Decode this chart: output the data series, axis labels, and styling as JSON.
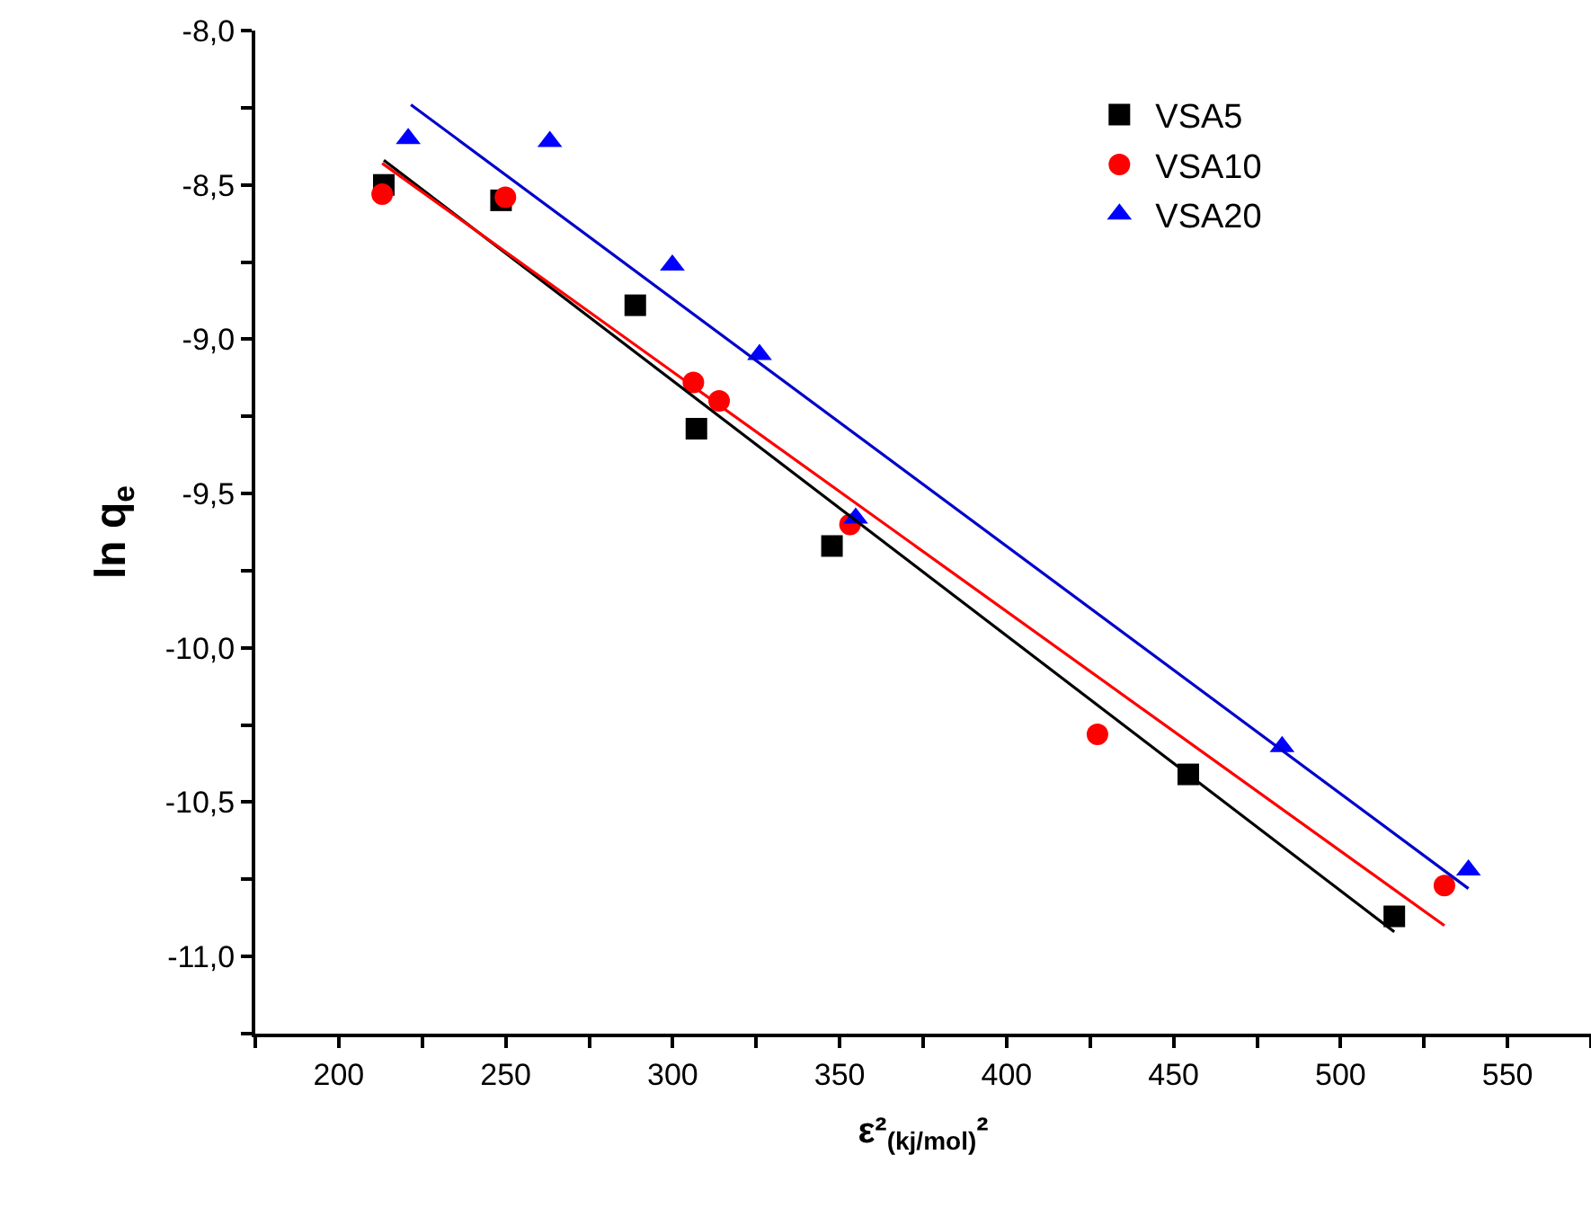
{
  "chart_data": {
    "type": "scatter",
    "xlabel": "ε²$_{(kj/mol)}$²",
    "ylabel": "ln q$_{e}$",
    "xlim": [
      175,
      575
    ],
    "ylim": [
      -11.25,
      -8.0
    ],
    "xticks": [
      {
        "value": 175,
        "label": null
      },
      200,
      {
        "value": 225,
        "label": null
      },
      250,
      {
        "value": 275,
        "label": null
      },
      300,
      {
        "value": 325,
        "label": null
      },
      350,
      {
        "value": 375,
        "label": null
      },
      400,
      {
        "value": 425,
        "label": null
      },
      450,
      {
        "value": 475,
        "label": null
      },
      500,
      {
        "value": 525,
        "label": null
      },
      550,
      {
        "value": 575,
        "label": null
      }
    ],
    "yticks": [
      {
        "value": -8.0,
        "label": "-8,0"
      },
      {
        "value": -8.25,
        "label": null
      },
      {
        "value": -8.5,
        "label": "-8,5"
      },
      {
        "value": -8.75,
        "label": null
      },
      {
        "value": -9.0,
        "label": "-9,0"
      },
      {
        "value": -9.25,
        "label": null
      },
      {
        "value": -9.5,
        "label": "-9,5"
      },
      {
        "value": -9.75,
        "label": null
      },
      {
        "value": -10.0,
        "label": "-10,0"
      },
      {
        "value": -10.25,
        "label": null
      },
      {
        "value": -10.5,
        "label": "-10,5"
      },
      {
        "value": -10.75,
        "label": null
      },
      {
        "value": -11.0,
        "label": "-11,0"
      },
      {
        "value": -11.25,
        "label": null
      }
    ],
    "legend": "top right",
    "series": [
      {
        "name": "VSA5",
        "color": "#000000",
        "marker": "square",
        "x": [
          213.5,
          248.6,
          288.8,
          307.1,
          347.7,
          454.4,
          516.1
        ],
        "values": [
          -8.5,
          -8.55,
          -8.89,
          -9.29,
          -9.67,
          -10.41,
          -10.87
        ]
      },
      {
        "name": "VSA10",
        "color": "#ff0000",
        "marker": "circle",
        "x": [
          213.0,
          249.9,
          306.2,
          313.9,
          353.1,
          427.2,
          531.1
        ],
        "values": [
          -8.53,
          -8.54,
          -9.14,
          -9.2,
          -9.6,
          -10.28,
          -10.77
        ]
      },
      {
        "name": "VSA20",
        "color": "#0000ff",
        "marker": "triangle",
        "x": [
          220.8,
          263.2,
          299.9,
          326.0,
          354.8,
          482.5,
          538.3
        ],
        "values": [
          -8.35,
          -8.36,
          -8.76,
          -9.05,
          -9.58,
          -10.32,
          -10.72
        ]
      },
      {
        "type": "line",
        "color": "#000000",
        "x": [
          213.5,
          516.1
        ],
        "values": [
          -8.42,
          -10.92
        ]
      },
      {
        "type": "line",
        "color": "#ff0000",
        "x": [
          213.0,
          531.1
        ],
        "values": [
          -8.43,
          -10.9
        ]
      },
      {
        "type": "line",
        "color": "#0000cc",
        "x": [
          221.6,
          538.3
        ],
        "values": [
          -8.24,
          -10.78
        ]
      }
    ]
  }
}
